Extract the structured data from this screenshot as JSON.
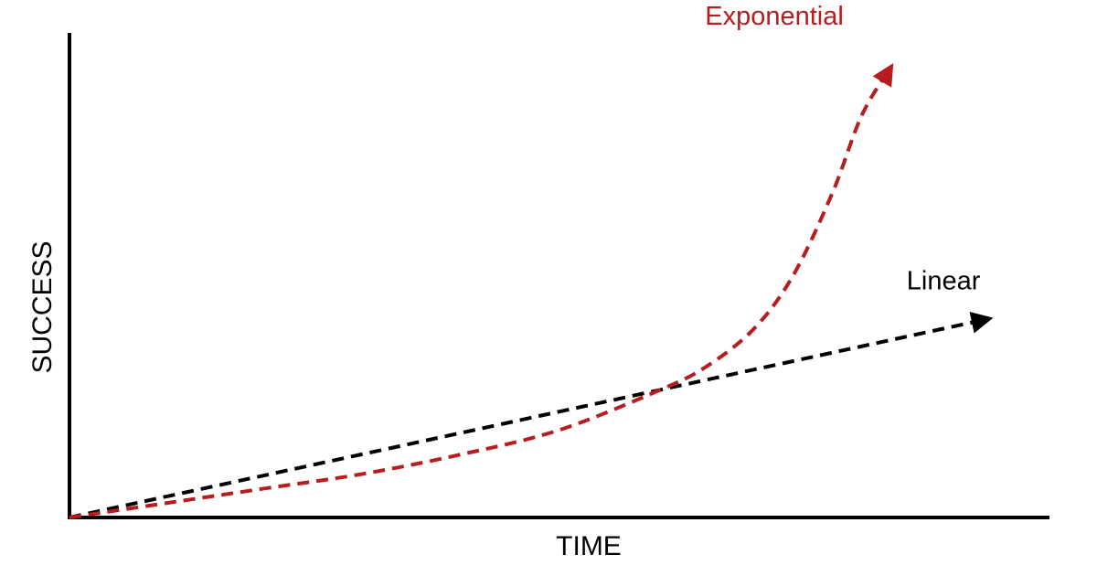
{
  "chart_data": {
    "type": "line",
    "xlabel": "TIME",
    "ylabel": "SUCCESS",
    "xlim": [
      0,
      10
    ],
    "ylim": [
      0,
      10
    ],
    "grid": false,
    "series": [
      {
        "name": "Linear",
        "color": "#000000",
        "x": [
          0,
          9.4
        ],
        "y": [
          0,
          4.1
        ]
      },
      {
        "name": "Exponential",
        "color": "#b91c1c",
        "x": [
          0,
          1.0,
          2.0,
          3.0,
          4.0,
          5.0,
          6.0,
          6.5,
          7.0,
          7.4,
          7.8,
          8.1,
          8.4
        ],
        "y": [
          0,
          0.3,
          0.6,
          0.9,
          1.3,
          1.8,
          2.6,
          3.1,
          3.9,
          5.0,
          6.7,
          8.3,
          9.3
        ]
      }
    ]
  }
}
